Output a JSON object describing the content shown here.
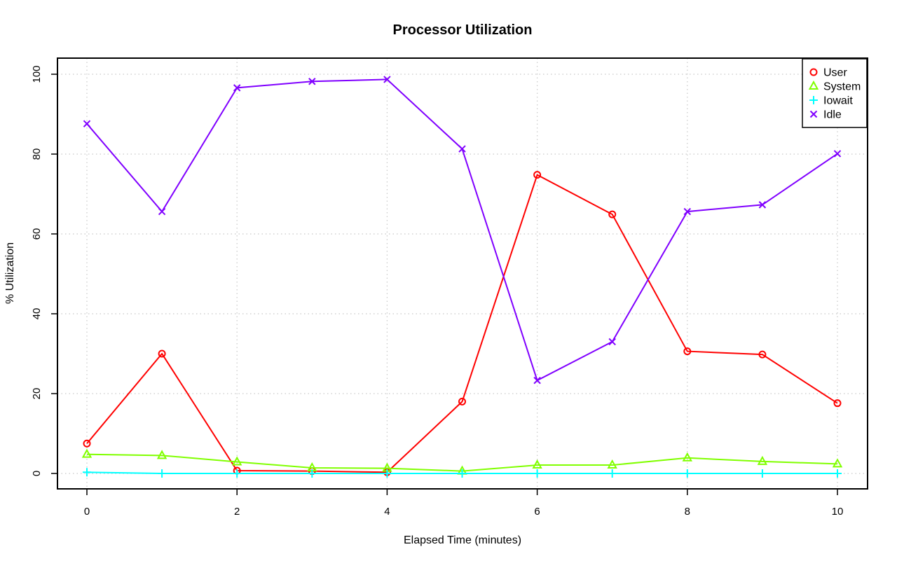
{
  "chart_data": {
    "type": "line",
    "title": "Processor Utilization",
    "xlabel": "Elapsed Time (minutes)",
    "ylabel": "% Utilization",
    "xlim": [
      0,
      10
    ],
    "ylim": [
      0,
      100
    ],
    "xticks": [
      0,
      2,
      4,
      6,
      8,
      10
    ],
    "yticks": [
      0,
      20,
      40,
      60,
      80,
      100
    ],
    "grid": true,
    "legend_position": "top-right",
    "x": [
      0,
      1,
      2,
      3,
      4,
      5,
      6,
      7,
      8,
      9,
      10
    ],
    "series": [
      {
        "name": "User",
        "color": "#ff0000",
        "marker": "circle",
        "values": [
          7.5,
          30.0,
          0.7,
          0.6,
          0.3,
          18.0,
          74.8,
          64.9,
          30.6,
          29.8,
          17.6
        ]
      },
      {
        "name": "System",
        "color": "#80ff00",
        "marker": "triangle",
        "values": [
          4.8,
          4.5,
          2.9,
          1.4,
          1.3,
          0.6,
          2.1,
          2.1,
          3.9,
          3.0,
          2.4
        ]
      },
      {
        "name": "Iowait",
        "color": "#00ffff",
        "marker": "plus",
        "values": [
          0.3,
          0.0,
          0.0,
          0.0,
          0.0,
          0.0,
          0.0,
          0.0,
          0.0,
          0.0,
          0.0
        ]
      },
      {
        "name": "Idle",
        "color": "#8000ff",
        "marker": "x",
        "values": [
          87.6,
          65.6,
          96.6,
          98.2,
          98.7,
          81.3,
          23.3,
          33.0,
          65.6,
          67.3,
          80.1
        ]
      }
    ]
  }
}
